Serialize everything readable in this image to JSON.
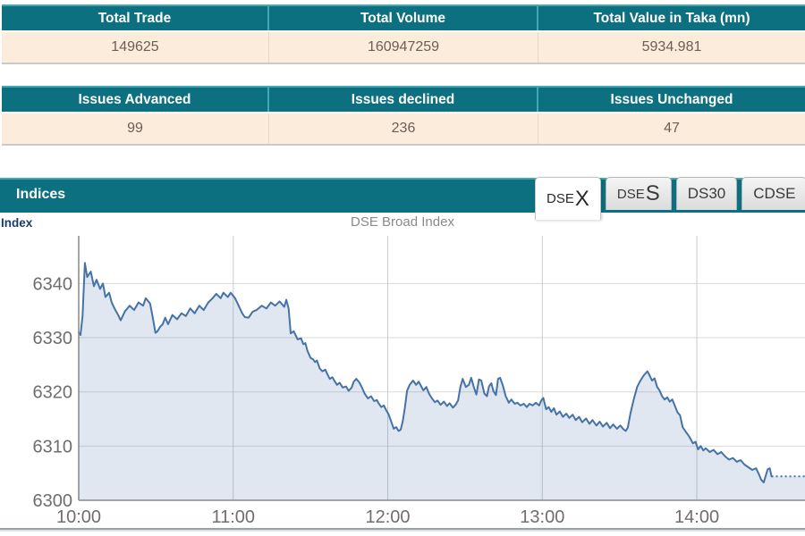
{
  "summary_tables": [
    {
      "headers": [
        "Total Trade",
        "Total Volume",
        "Total Value in Taka (mn)"
      ],
      "values": [
        "149625",
        "160947259",
        "5934.981"
      ]
    },
    {
      "headers": [
        "Issues Advanced",
        "Issues declined",
        "Issues Unchanged"
      ],
      "values": [
        "99",
        "236",
        "47"
      ]
    }
  ],
  "indices_panel": {
    "title": "Indices",
    "tabs": [
      {
        "prefix": "DSE",
        "suffix": "X",
        "active": true
      },
      {
        "prefix": "DSE",
        "suffix": "S",
        "active": false
      },
      {
        "prefix": "DS30",
        "suffix": "",
        "active": false
      },
      {
        "prefix": "CDSE",
        "suffix": "",
        "active": false
      }
    ]
  },
  "chart_header": {
    "y_axis_label": "Index",
    "title": "DSE Broad Index"
  },
  "colors": {
    "header_teal": "#0d7080",
    "header_teal_light": "#43a8b6",
    "row_cream": "#fcecdc",
    "row_text": "#6a5f55",
    "tab_text": "#3a3a3a",
    "axis_title_navy": "#1b3c6b",
    "chart_title_gray": "#8a8a8a"
  },
  "chart_data": {
    "type": "area",
    "title": "DSE Broad Index",
    "ylabel": "Index",
    "legend": "none",
    "grid": true,
    "x_axis": {
      "ticks": [
        "10:00",
        "11:00",
        "12:00",
        "13:00",
        "14:00"
      ],
      "tick_minutes": [
        0,
        60,
        120,
        180,
        240
      ],
      "range_minutes": [
        0,
        282
      ],
      "start_time": "10:00"
    },
    "y_axis": {
      "ticks": [
        "6300",
        "6310",
        "6320",
        "6330",
        "6340"
      ],
      "tick_values": [
        6300,
        6310,
        6320,
        6330,
        6340
      ],
      "range": [
        6300,
        6348.8
      ]
    },
    "colors": {
      "line": "#4572a7",
      "fill": "rgba(69,114,167,0.17)",
      "grid_h": "#d9d9d9",
      "grid_v": "#c9ccd0",
      "axis": "#898989",
      "tick_text": "#6e6e6e"
    },
    "series": [
      {
        "name": "DSEX",
        "points": [
          [
            0,
            6331
          ],
          [
            0.7,
            6330.5
          ],
          [
            1.5,
            6334
          ],
          [
            2.4,
            6343.8
          ],
          [
            3.3,
            6341.2
          ],
          [
            4.7,
            6342.2
          ],
          [
            5.9,
            6339.5
          ],
          [
            6.9,
            6340.7
          ],
          [
            8.3,
            6339
          ],
          [
            9.4,
            6340
          ],
          [
            10.4,
            6337.5
          ],
          [
            11.8,
            6338.3
          ],
          [
            12.8,
            6336.5
          ],
          [
            13.9,
            6335.4
          ],
          [
            15.3,
            6334.2
          ],
          [
            16.3,
            6333.2
          ],
          [
            18,
            6334.9
          ],
          [
            19.8,
            6335.9
          ],
          [
            21.5,
            6335.1
          ],
          [
            23.2,
            6336.5
          ],
          [
            25,
            6335.9
          ],
          [
            26,
            6337.3
          ],
          [
            27.7,
            6336.3
          ],
          [
            28.6,
            6334.1
          ],
          [
            29.8,
            6330.9
          ],
          [
            30.6,
            6331.2
          ],
          [
            31.6,
            6332
          ],
          [
            32.6,
            6332.5
          ],
          [
            33.6,
            6333.7
          ],
          [
            34.7,
            6332.5
          ],
          [
            36.4,
            6334.2
          ],
          [
            38.2,
            6333.4
          ],
          [
            39.9,
            6334.5
          ],
          [
            41.6,
            6334
          ],
          [
            43.3,
            6335.4
          ],
          [
            45,
            6334.5
          ],
          [
            46.8,
            6335.9
          ],
          [
            48.5,
            6335.1
          ],
          [
            50.3,
            6336.5
          ],
          [
            52,
            6337.3
          ],
          [
            53.4,
            6338.1
          ],
          [
            55.1,
            6337.3
          ],
          [
            56.2,
            6338.3
          ],
          [
            57.9,
            6337.5
          ],
          [
            59,
            6338.3
          ],
          [
            60.7,
            6337.3
          ],
          [
            62,
            6336
          ],
          [
            63.5,
            6334.5
          ],
          [
            64.5,
            6333.8
          ],
          [
            66,
            6333.7
          ],
          [
            67.5,
            6334.8
          ],
          [
            69,
            6335.1
          ],
          [
            71.1,
            6335.9
          ],
          [
            72.9,
            6335.4
          ],
          [
            74.6,
            6336.5
          ],
          [
            76.3,
            6335.9
          ],
          [
            78,
            6336.7
          ],
          [
            79.8,
            6335.7
          ],
          [
            80.6,
            6337
          ],
          [
            81.5,
            6335.4
          ],
          [
            82.3,
            6330.8
          ],
          [
            83.5,
            6331.2
          ],
          [
            85,
            6329.7
          ],
          [
            86.3,
            6329.9
          ],
          [
            87.2,
            6328.8
          ],
          [
            88,
            6329
          ],
          [
            88.8,
            6327.6
          ],
          [
            90,
            6326.3
          ],
          [
            91,
            6326
          ],
          [
            91.8,
            6325.5
          ],
          [
            92.5,
            6325.8
          ],
          [
            93.6,
            6324.3
          ],
          [
            94.6,
            6323.8
          ],
          [
            95.8,
            6324.1
          ],
          [
            96.5,
            6323.3
          ],
          [
            97.5,
            6322.4
          ],
          [
            98.5,
            6322.7
          ],
          [
            99.5,
            6321.9
          ],
          [
            100.3,
            6321.3
          ],
          [
            101.3,
            6321.7
          ],
          [
            102.5,
            6320.8
          ],
          [
            103.8,
            6321
          ],
          [
            104.8,
            6320.2
          ],
          [
            106,
            6320.8
          ],
          [
            106.8,
            6321.9
          ],
          [
            107.8,
            6322.4
          ],
          [
            109,
            6321.7
          ],
          [
            110,
            6320.8
          ],
          [
            111,
            6319.7
          ],
          [
            112.3,
            6318.8
          ],
          [
            113.5,
            6319.2
          ],
          [
            114.7,
            6318.3
          ],
          [
            115.8,
            6318.5
          ],
          [
            116.3,
            6318
          ],
          [
            117.5,
            6317.2
          ],
          [
            118.5,
            6317.5
          ],
          [
            119.3,
            6316.7
          ],
          [
            120.3,
            6315.9
          ],
          [
            121.5,
            6314.3
          ],
          [
            122.3,
            6313.2
          ],
          [
            123.3,
            6313.5
          ],
          [
            124.2,
            6312.8
          ],
          [
            125,
            6313
          ],
          [
            125.8,
            6314.5
          ],
          [
            126.6,
            6316.9
          ],
          [
            127.5,
            6320.2
          ],
          [
            128.5,
            6321.3
          ],
          [
            129.8,
            6322.1
          ],
          [
            131,
            6321.3
          ],
          [
            132,
            6321.9
          ],
          [
            133,
            6321
          ],
          [
            133.8,
            6320.3
          ],
          [
            135,
            6320.9
          ],
          [
            136,
            6319.7
          ],
          [
            137,
            6318.9
          ],
          [
            138.3,
            6318.1
          ],
          [
            139.3,
            6318.4
          ],
          [
            140.5,
            6317.6
          ],
          [
            141.8,
            6318.2
          ],
          [
            143,
            6317.4
          ],
          [
            144,
            6317.9
          ],
          [
            145.3,
            6317.1
          ],
          [
            146.3,
            6317.6
          ],
          [
            147.3,
            6318.4
          ],
          [
            148.2,
            6320.9
          ],
          [
            149.1,
            6322.4
          ],
          [
            150.3,
            6320.9
          ],
          [
            151.5,
            6321.3
          ],
          [
            152.4,
            6322.6
          ],
          [
            153.4,
            6320.9
          ],
          [
            154.4,
            6319.5
          ],
          [
            155.4,
            6322.3
          ],
          [
            156.3,
            6322.1
          ],
          [
            157.5,
            6319.7
          ],
          [
            158.5,
            6319.2
          ],
          [
            159.3,
            6321
          ],
          [
            160.2,
            6321.6
          ],
          [
            161,
            6320.2
          ],
          [
            162,
            6319.4
          ],
          [
            162.8,
            6322.4
          ],
          [
            163.6,
            6322.6
          ],
          [
            164.6,
            6321.3
          ],
          [
            165.8,
            6319.2
          ],
          [
            167,
            6318
          ],
          [
            168,
            6318.6
          ],
          [
            169.3,
            6317.8
          ],
          [
            170.3,
            6318
          ],
          [
            171.5,
            6317.5
          ],
          [
            172.8,
            6317.8
          ],
          [
            174,
            6317.2
          ],
          [
            175,
            6317.8
          ],
          [
            176.3,
            6317.5
          ],
          [
            177.5,
            6318
          ],
          [
            178.8,
            6317.5
          ],
          [
            179.6,
            6318.4
          ],
          [
            180.4,
            6318.9
          ],
          [
            181.5,
            6316.8
          ],
          [
            182.5,
            6317.2
          ],
          [
            183.5,
            6316.3
          ],
          [
            184.5,
            6317
          ],
          [
            185.5,
            6315.8
          ],
          [
            186.8,
            6316.4
          ],
          [
            188,
            6315.4
          ],
          [
            189.3,
            6316
          ],
          [
            190.5,
            6315.2
          ],
          [
            191.8,
            6315.8
          ],
          [
            193,
            6314.8
          ],
          [
            194.3,
            6315.4
          ],
          [
            195.5,
            6314.4
          ],
          [
            197,
            6315.1
          ],
          [
            198.3,
            6314.1
          ],
          [
            199.5,
            6314.8
          ],
          [
            201,
            6313.8
          ],
          [
            202.3,
            6314.5
          ],
          [
            203.5,
            6313.6
          ],
          [
            205,
            6314.3
          ],
          [
            206.3,
            6313.3
          ],
          [
            207.5,
            6314
          ],
          [
            209,
            6313.2
          ],
          [
            210.3,
            6313.8
          ],
          [
            211.5,
            6313.1
          ],
          [
            212.4,
            6312.8
          ],
          [
            213.2,
            6313.4
          ],
          [
            214.2,
            6316
          ],
          [
            215.5,
            6318.6
          ],
          [
            216.8,
            6320.9
          ],
          [
            218,
            6322
          ],
          [
            219.3,
            6323
          ],
          [
            220.2,
            6323.5
          ],
          [
            220.8,
            6323.8
          ],
          [
            221.6,
            6323.1
          ],
          [
            222.6,
            6322.1
          ],
          [
            223.6,
            6322.5
          ],
          [
            224.6,
            6320.9
          ],
          [
            225.5,
            6320.3
          ],
          [
            226.5,
            6319.2
          ],
          [
            227.5,
            6318.6
          ],
          [
            228.5,
            6319
          ],
          [
            229.5,
            6318.2
          ],
          [
            230.5,
            6318.6
          ],
          [
            231.5,
            6317.4
          ],
          [
            232.5,
            6316.2
          ],
          [
            233.5,
            6315.7
          ],
          [
            234.5,
            6313.5
          ],
          [
            235.5,
            6312.8
          ],
          [
            237,
            6311.8
          ],
          [
            238.5,
            6310.5
          ],
          [
            239.5,
            6310.8
          ],
          [
            240.5,
            6309.4
          ],
          [
            241.5,
            6310
          ],
          [
            242.5,
            6309.2
          ],
          [
            243.5,
            6309.6
          ],
          [
            245,
            6308.9
          ],
          [
            246.5,
            6309.3
          ],
          [
            248,
            6308.5
          ],
          [
            249.5,
            6308.9
          ],
          [
            251,
            6308.1
          ],
          [
            252.5,
            6307.5
          ],
          [
            254,
            6307.8
          ],
          [
            255.5,
            6307.1
          ],
          [
            257,
            6307.4
          ],
          [
            258.5,
            6306.6
          ],
          [
            260,
            6306.1
          ],
          [
            261.5,
            6305.6
          ],
          [
            263,
            6305.9
          ],
          [
            264,
            6304.9
          ],
          [
            265,
            6303.8
          ],
          [
            266,
            6303.3
          ],
          [
            266.8,
            6304.6
          ],
          [
            267.5,
            6305.7
          ],
          [
            268.3,
            6305.9
          ],
          [
            269,
            6304.4
          ]
        ],
        "closing_segment": {
          "style": "dotted",
          "from_minute": 269,
          "to_minute": 282,
          "value": 6304.4
        }
      }
    ]
  }
}
